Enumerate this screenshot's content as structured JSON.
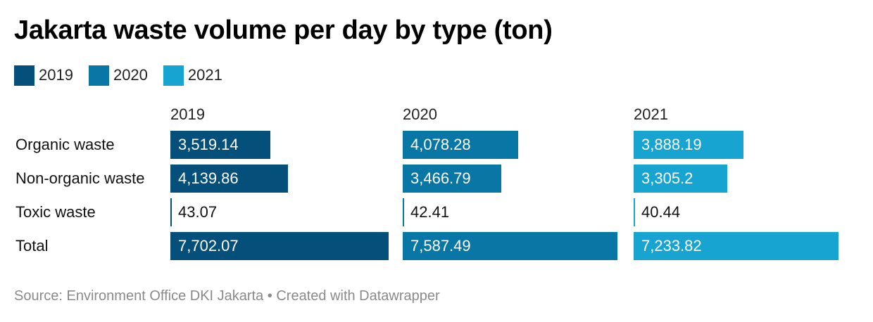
{
  "title": "Jakarta waste volume per day by type (ton)",
  "source": "Source: Environment Office DKI Jakarta • Created with Datawrapper",
  "colors": {
    "2019": "#04507a",
    "2020": "#0877a5",
    "2021": "#17a4d1"
  },
  "chart_data": {
    "type": "bar",
    "title": "Jakarta waste volume per day by type (ton)",
    "categories": [
      "Organic waste",
      "Non-organic waste",
      "Toxic waste",
      "Total"
    ],
    "series": [
      {
        "name": "2019",
        "values": [
          3519.14,
          4139.86,
          43.07,
          7702.07
        ],
        "labels": [
          "3,519.14",
          "4,139.86",
          "43.07",
          "7,702.07"
        ]
      },
      {
        "name": "2020",
        "values": [
          4078.28,
          3466.79,
          42.41,
          7587.49
        ],
        "labels": [
          "4,078.28",
          "3,466.79",
          "42.41",
          "7,587.49"
        ]
      },
      {
        "name": "2021",
        "values": [
          3888.19,
          3305.2,
          40.44,
          7233.82
        ],
        "labels": [
          "3,888.19",
          "3,305.2",
          "40.44",
          "7,233.82"
        ]
      }
    ],
    "legend": "top-left",
    "grid": false,
    "xlim": [
      0,
      7702.07
    ]
  }
}
